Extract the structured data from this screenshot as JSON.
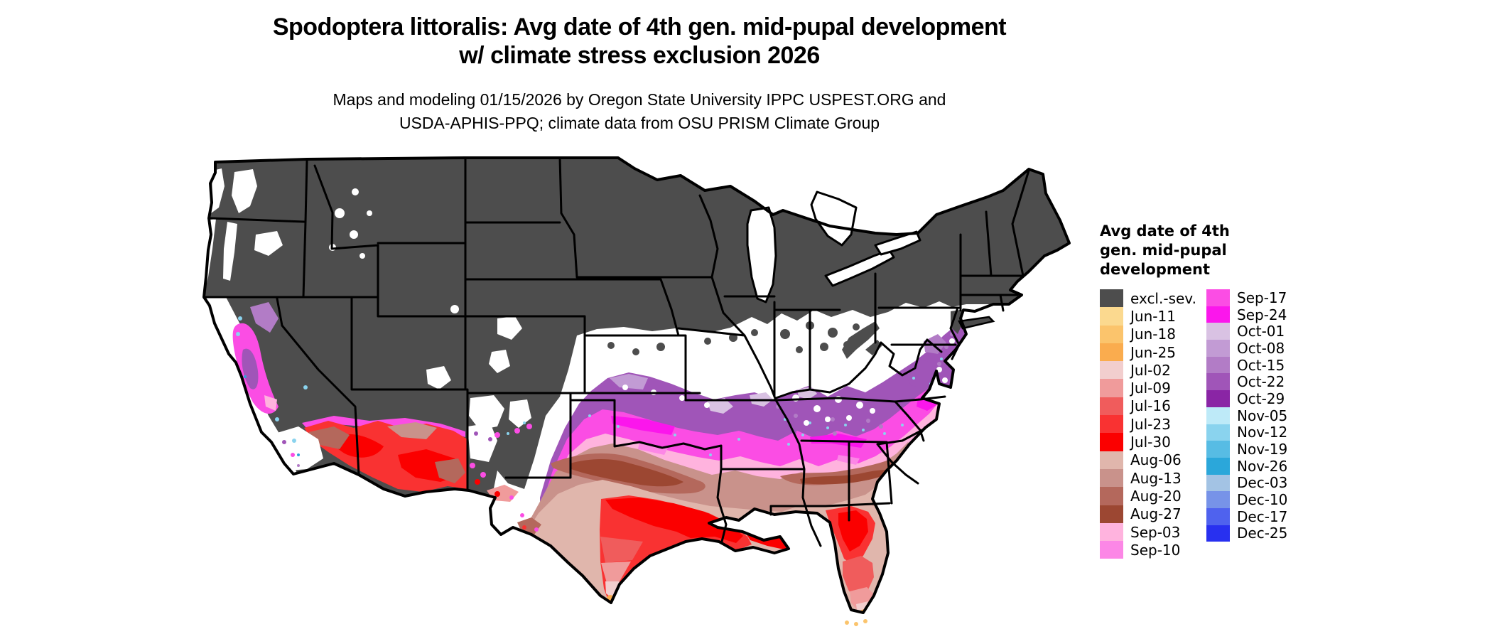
{
  "title": {
    "line1": "Spodoptera littoralis: Avg date of 4th gen. mid-pupal development",
    "line2": "w/ climate stress exclusion 2026"
  },
  "subtitle": {
    "line1": "Maps and modeling 01/15/2026 by Oregon State University IPPC USPEST.ORG and",
    "line2": "USDA-APHIS-PPQ; climate data from OSU PRISM Climate Group"
  },
  "legend": {
    "title_lines": [
      "Avg date of 4th",
      "gen. mid-pupal",
      "development"
    ],
    "left": [
      {
        "label": "excl.-sev.",
        "color_key": "excl_sev"
      },
      {
        "label": "Jun-11",
        "color_key": "jun11"
      },
      {
        "label": "Jun-18",
        "color_key": "jun18"
      },
      {
        "label": "Jun-25",
        "color_key": "jun25"
      },
      {
        "label": "Jul-02",
        "color_key": "jul02"
      },
      {
        "label": "Jul-09",
        "color_key": "jul09"
      },
      {
        "label": "Jul-16",
        "color_key": "jul16"
      },
      {
        "label": "Jul-23",
        "color_key": "jul23"
      },
      {
        "label": "Jul-30",
        "color_key": "jul30"
      },
      {
        "label": "Aug-06",
        "color_key": "aug06"
      },
      {
        "label": "Aug-13",
        "color_key": "aug13"
      },
      {
        "label": "Aug-20",
        "color_key": "aug20"
      },
      {
        "label": "Aug-27",
        "color_key": "aug27"
      },
      {
        "label": "Sep-03",
        "color_key": "sep03"
      },
      {
        "label": "Sep-10",
        "color_key": "sep10"
      }
    ],
    "right": [
      {
        "label": "Sep-17",
        "color_key": "sep17"
      },
      {
        "label": "Sep-24",
        "color_key": "sep24"
      },
      {
        "label": "Oct-01",
        "color_key": "oct01"
      },
      {
        "label": "Oct-08",
        "color_key": "oct08"
      },
      {
        "label": "Oct-15",
        "color_key": "oct15"
      },
      {
        "label": "Oct-22",
        "color_key": "oct22"
      },
      {
        "label": "Oct-29",
        "color_key": "oct29"
      },
      {
        "label": "Nov-05",
        "color_key": "nov05"
      },
      {
        "label": "Nov-12",
        "color_key": "nov12"
      },
      {
        "label": "Nov-19",
        "color_key": "nov19"
      },
      {
        "label": "Nov-26",
        "color_key": "nov26"
      },
      {
        "label": "Dec-03",
        "color_key": "dec03"
      },
      {
        "label": "Dec-10",
        "color_key": "dec10"
      },
      {
        "label": "Dec-17",
        "color_key": "dec17"
      },
      {
        "label": "Dec-25",
        "color_key": "dec25"
      }
    ]
  },
  "colors": {
    "excl_sev": "#4D4D4D",
    "jun11": "#FBD98F",
    "jun18": "#FBC46C",
    "jun25": "#FAAC4E",
    "jul02": "#F2CECE",
    "jul09": "#F09B9B",
    "jul16": "#F05C5C",
    "jul23": "#F93232",
    "jul30": "#FB0000",
    "aug06": "#E0B6AC",
    "aug13": "#C9928B",
    "aug20": "#B4685C",
    "aug27": "#9C4732",
    "sep03": "#FFB3DE",
    "sep10": "#FC87E6",
    "sep17": "#FB4DE4",
    "sep24": "#FB16EC",
    "oct01": "#D9C2E3",
    "oct08": "#C29BD4",
    "oct15": "#B27CC6",
    "oct22": "#A055B8",
    "oct29": "#8A25A5",
    "nov05": "#BEEAF8",
    "nov12": "#8AD3EE",
    "nov19": "#57BCE4",
    "nov26": "#2BA7DA",
    "dec03": "#A3C3E4",
    "dec10": "#7793E8",
    "dec17": "#4F62EE",
    "dec25": "#2830F0"
  },
  "map": {
    "region": "Contiguous United States",
    "border_color": "#000000",
    "no_data_color": "#FFFFFF"
  }
}
